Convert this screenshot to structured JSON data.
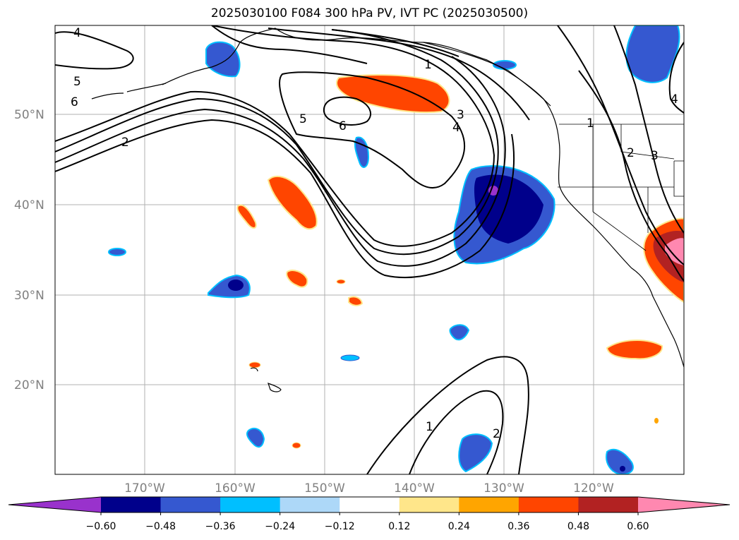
{
  "title": "2025030100 F084 300 hPa PV, IVT PC (2025030500)",
  "lat_labels": [
    "50°N",
    "40°N",
    "30°N",
    "20°N"
  ],
  "lon_labels": [
    "170°W",
    "160°W",
    "150°W",
    "140°W",
    "130°W",
    "120°W"
  ],
  "colorbar": {
    "ticks": [
      "−0.60",
      "−0.48",
      "−0.36",
      "−0.24",
      "−0.12",
      "0.12",
      "0.24",
      "0.36",
      "0.48",
      "0.60"
    ],
    "colors": [
      "#9932cc",
      "#00008b",
      "#3558d0",
      "#00bfff",
      "#add8f8",
      "#ffffff",
      "#ffe68a",
      "#ffa500",
      "#ff4500",
      "#b22222",
      "#ff88b0"
    ]
  },
  "contour_labels": [
    "4",
    "5",
    "6",
    "2",
    "5",
    "6",
    "1",
    "3",
    "4",
    "1",
    "2",
    "3",
    "4",
    "1",
    "2"
  ],
  "colors": {
    "neg_strong": "#00008b",
    "neg_mid": "#3558d0",
    "neg_light": "#00bfff",
    "pos_mid": "#ff4500",
    "pos_strong": "#b22222",
    "pos_max": "#ff88b0",
    "grid": "#b0b0b0",
    "coast": "#000000"
  }
}
